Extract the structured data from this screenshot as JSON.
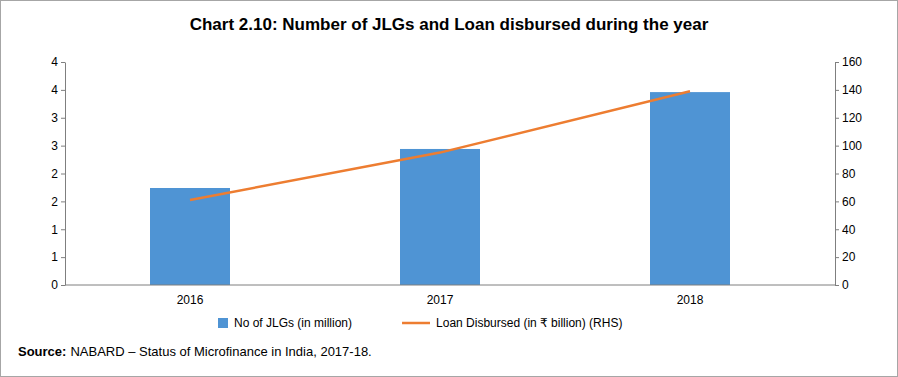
{
  "chart_data": {
    "type": "bar",
    "title": "Chart 2.10: Number of JLGs and Loan disbursed during the year",
    "categories": [
      "2016",
      "2017",
      "2018"
    ],
    "series": [
      {
        "name": "No of JLGs (in million)",
        "type": "bar",
        "color": "#4f94d4",
        "values": [
          1.74,
          2.44,
          3.46
        ]
      },
      {
        "name": "Loan Disbursed (in ₹ billion) (RHS)",
        "type": "line",
        "color": "#ed7d31",
        "axis": "y2",
        "values": [
          61,
          95,
          139
        ]
      }
    ],
    "ylim": [
      0,
      4
    ],
    "yticks": [
      {
        "value": 0,
        "label": "0"
      },
      {
        "value": 0.5,
        "label": "1"
      },
      {
        "value": 1,
        "label": "1"
      },
      {
        "value": 1.5,
        "label": "2"
      },
      {
        "value": 2,
        "label": "2"
      },
      {
        "value": 2.5,
        "label": "3"
      },
      {
        "value": 3,
        "label": "3"
      },
      {
        "value": 3.5,
        "label": "4"
      },
      {
        "value": 4,
        "label": "4"
      }
    ],
    "y2lim": [
      0,
      160
    ],
    "y2ticks": [
      0,
      20,
      40,
      60,
      80,
      100,
      120,
      140,
      160
    ],
    "grid": false,
    "legend": "bottom",
    "source_label": "Source:",
    "source_text": "NABARD – Status of Microfinance in India, 2017-18."
  }
}
